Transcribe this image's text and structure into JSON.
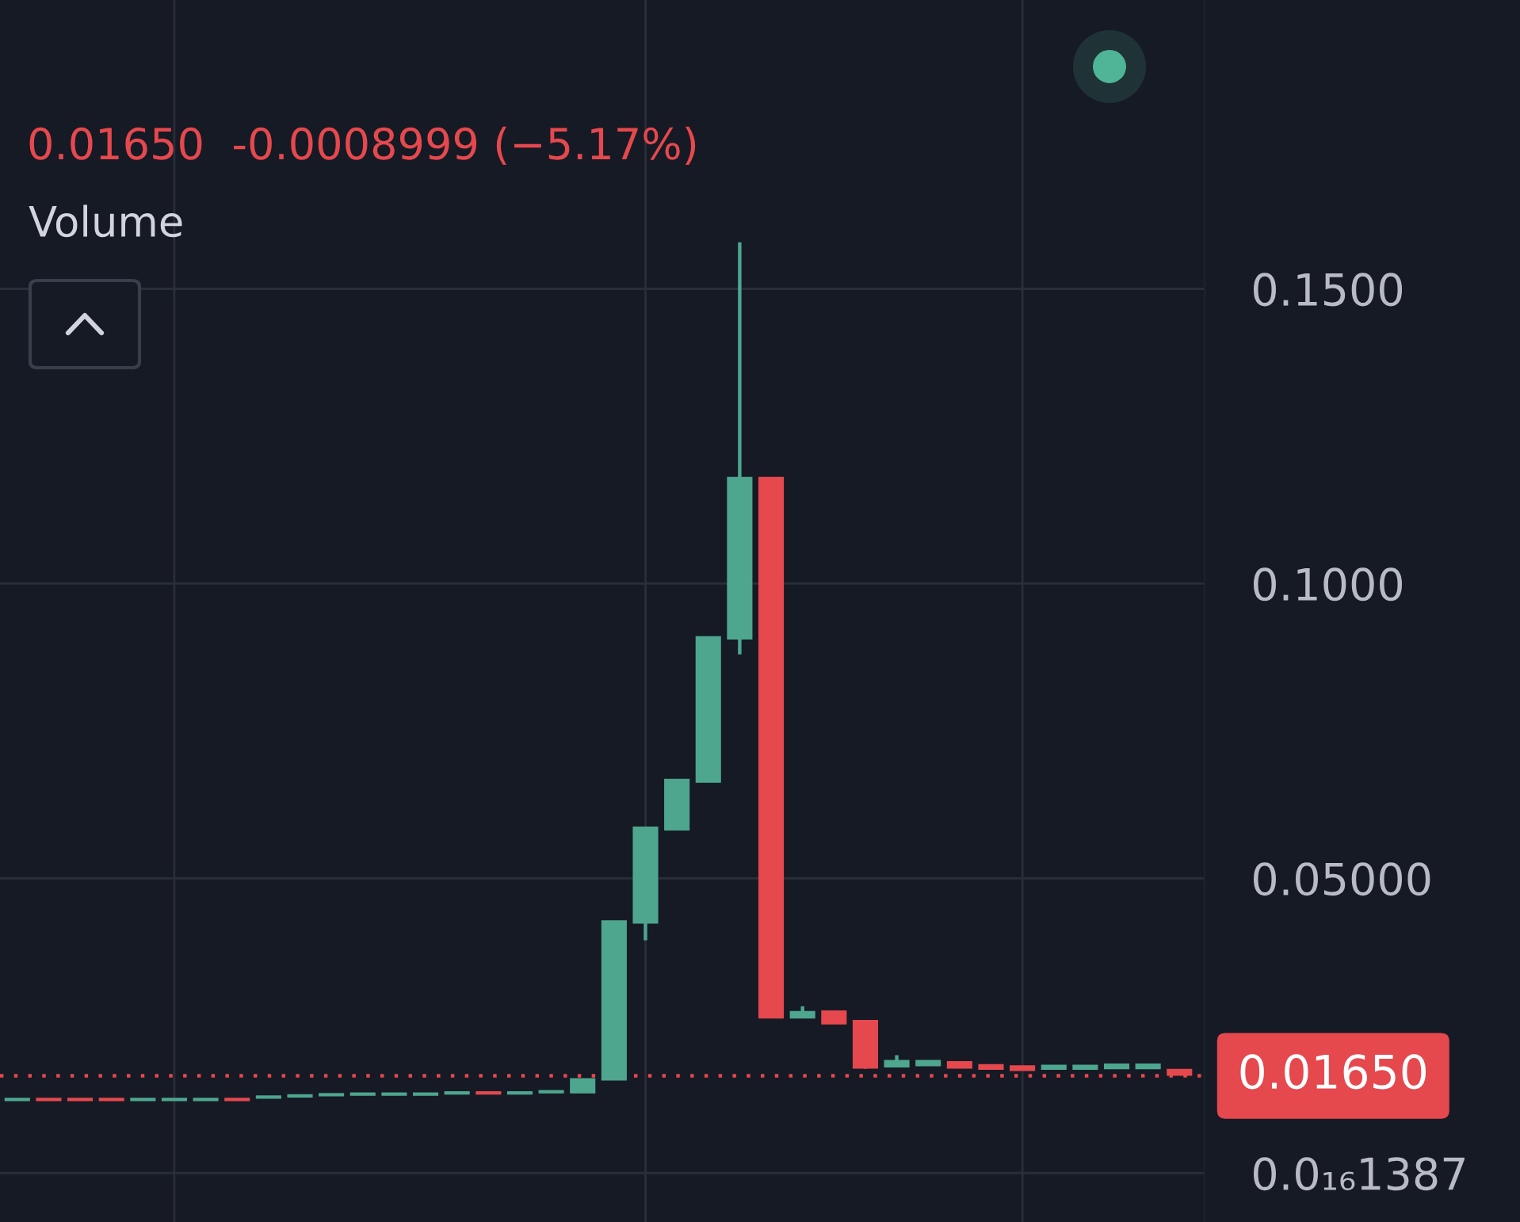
{
  "chart_data": {
    "type": "candlestick",
    "subtitle": "0.01650  -0.0008999 (−5.17%)",
    "annotations": [
      "Volume"
    ],
    "categories": [
      null,
      null,
      null,
      null,
      null,
      null,
      null,
      null,
      null,
      null,
      null,
      null,
      null,
      null,
      null,
      null,
      null,
      null,
      null,
      null,
      null,
      null,
      null,
      null,
      null,
      null,
      null,
      null,
      null,
      null,
      null,
      null,
      null,
      null,
      null,
      null,
      null,
      null
    ],
    "ohlc": [
      [
        0.0124,
        0.0126,
        0.0124,
        0.0126
      ],
      [
        0.0126,
        0.0126,
        0.0124,
        0.0124
      ],
      [
        0.0126,
        0.0126,
        0.0124,
        0.0124
      ],
      [
        0.0126,
        0.0126,
        0.0124,
        0.0124
      ],
      [
        0.0124,
        0.0126,
        0.0124,
        0.0126
      ],
      [
        0.0124,
        0.0126,
        0.0124,
        0.0126
      ],
      [
        0.0124,
        0.0126,
        0.0124,
        0.0126
      ],
      [
        0.0126,
        0.0126,
        0.0124,
        0.0124
      ],
      [
        0.0128,
        0.013,
        0.0128,
        0.013
      ],
      [
        0.013,
        0.0132,
        0.013,
        0.0132
      ],
      [
        0.0132,
        0.0134,
        0.0132,
        0.0134
      ],
      [
        0.0133,
        0.0135,
        0.0133,
        0.0135
      ],
      [
        0.0133,
        0.0135,
        0.0133,
        0.0135
      ],
      [
        0.0133,
        0.0135,
        0.0133,
        0.0135
      ],
      [
        0.0135,
        0.0137,
        0.0135,
        0.0137
      ],
      [
        0.0137,
        0.0137,
        0.0135,
        0.0135
      ],
      [
        0.0135,
        0.0137,
        0.0135,
        0.0137
      ],
      [
        0.0137,
        0.0139,
        0.0137,
        0.0139
      ],
      [
        0.0137,
        0.0159,
        0.0137,
        0.0159
      ],
      [
        0.0159,
        0.0427,
        0.0159,
        0.0427
      ],
      [
        0.0425,
        0.0586,
        0.0395,
        0.0586
      ],
      [
        0.0583,
        0.0667,
        0.0583,
        0.0667
      ],
      [
        0.0664,
        0.0909,
        0.0664,
        0.0909
      ],
      [
        0.0907,
        0.1579,
        0.088,
        0.1179
      ],
      [
        0.1179,
        0.1179,
        0.0264,
        0.0264
      ],
      [
        0.0264,
        0.0283,
        0.0264,
        0.0273
      ],
      [
        0.0274,
        0.0274,
        0.0254,
        0.0254
      ],
      [
        0.0258,
        0.0258,
        0.0177,
        0.0179
      ],
      [
        0.0181,
        0.02,
        0.0181,
        0.019
      ],
      [
        0.0183,
        0.0191,
        0.0183,
        0.019
      ],
      [
        0.0188,
        0.0188,
        0.0179,
        0.0179
      ],
      [
        0.0183,
        0.0183,
        0.0177,
        0.0177
      ],
      [
        0.0181,
        0.0181,
        0.0175,
        0.0175
      ],
      [
        0.0177,
        0.0182,
        0.0177,
        0.0182
      ],
      [
        0.0177,
        0.0182,
        0.0177,
        0.0182
      ],
      [
        0.0178,
        0.0184,
        0.0178,
        0.0184
      ],
      [
        0.0178,
        0.0184,
        0.0178,
        0.0184
      ],
      [
        0.0175,
        0.0175,
        0.0167,
        0.0167
      ]
    ],
    "colors": [
      "#4ea68e",
      "#e5484d",
      "#e5484d",
      "#e5484d",
      "#4ea68e",
      "#4ea68e",
      "#4ea68e",
      "#e5484d",
      "#4ea68e",
      "#4ea68e",
      "#4ea68e",
      "#4ea68e",
      "#4ea68e",
      "#4ea68e",
      "#4ea68e",
      "#e5484d",
      "#4ea68e",
      "#4ea68e",
      "#4ea68e",
      "#4ea68e",
      "#4ea68e",
      "#4ea68e",
      "#4ea68e",
      "#4ea68e",
      "#e5484d",
      "#4ea68e",
      "#e5484d",
      "#e5484d",
      "#4ea68e",
      "#4ea68e",
      "#e5484d",
      "#e5484d",
      "#e5484d",
      "#4ea68e",
      "#4ea68e",
      "#4ea68e",
      "#4ea68e",
      "#e5484d"
    ],
    "ylim": [
      -0.0083,
      0.199
    ],
    "yticks": [
      {
        "value": 1.387e-17,
        "label": "0.0₁₆1387"
      },
      {
        "value": 0.05,
        "label": "0.05000"
      },
      {
        "value": 0.1,
        "label": "0.1000"
      },
      {
        "value": 0.15,
        "label": "0.1500"
      }
    ],
    "ref_lines": [
      {
        "axis": "y",
        "value": 0.0165,
        "label": "0.01650",
        "color": "#e5484d",
        "line_style": "dotted"
      }
    ],
    "grid": true,
    "tick_labels": "y"
  }
}
